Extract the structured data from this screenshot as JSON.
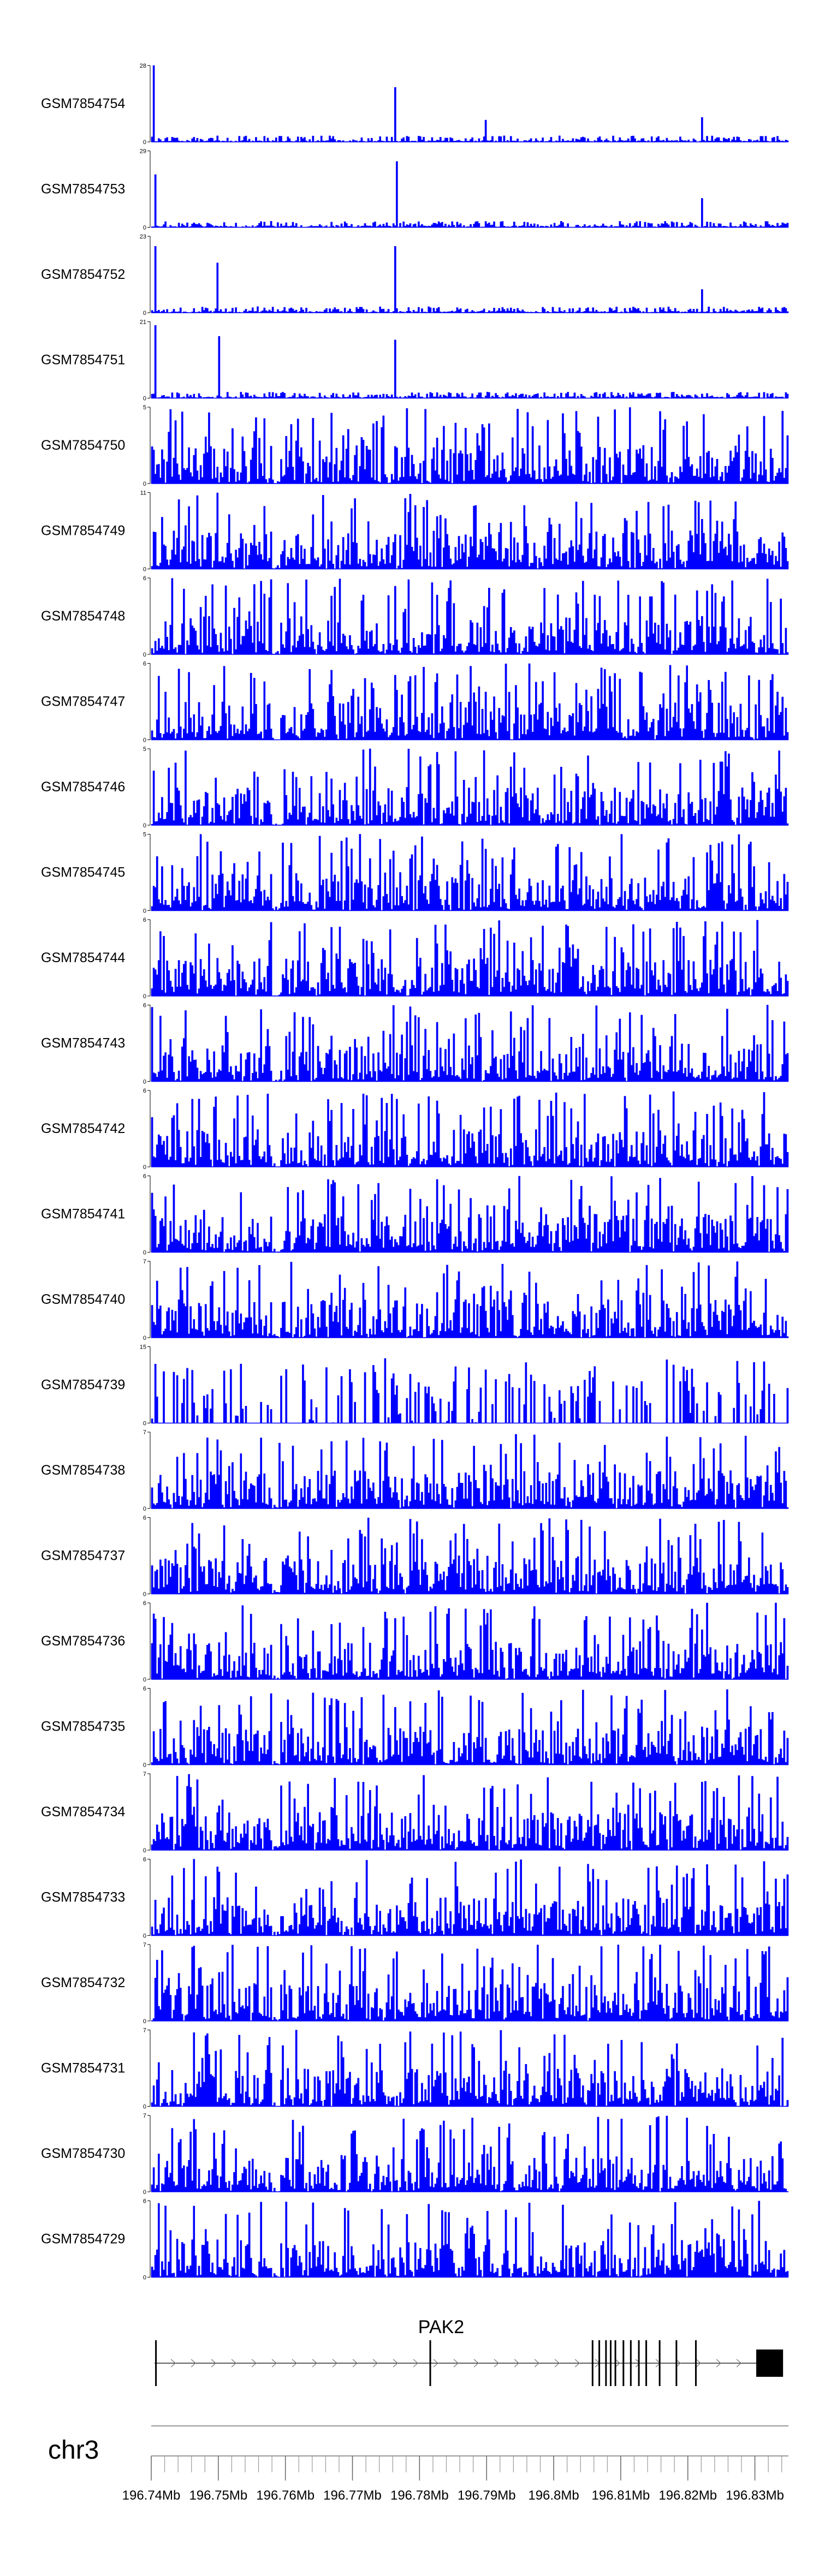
{
  "chart_data": {
    "type": "area",
    "color": "#0000ff",
    "chromosome": "chr3",
    "gene": "PAK2",
    "x_range_mb": [
      196.74,
      196.835
    ],
    "x_ticks": [
      "196.74Mb",
      "196.75Mb",
      "196.76Mb",
      "196.77Mb",
      "196.78Mb",
      "196.79Mb",
      "196.8Mb",
      "196.81Mb",
      "196.82Mb",
      "196.83Mb"
    ],
    "gene_model": {
      "start_mb": 196.7405,
      "end_mb": 196.8342,
      "strand": "+",
      "exons_mb": [
        196.7407,
        196.7816,
        196.8058,
        196.8068,
        196.8078,
        196.8085,
        196.8092,
        196.8104,
        196.8115,
        196.8127,
        196.8138,
        196.8158,
        196.8183,
        196.8212
      ],
      "last_exon_mb": [
        196.8302,
        196.8342
      ]
    },
    "tracks": [
      {
        "name": "GSM7854754",
        "ymax": 28,
        "peaks": [
          {
            "x": 196.7403,
            "v": 28
          },
          {
            "x": 196.7764,
            "v": 20
          },
          {
            "x": 196.7899,
            "v": 8
          },
          {
            "x": 196.8222,
            "v": 9
          }
        ]
      },
      {
        "name": "GSM7854753",
        "ymax": 29,
        "peaks": [
          {
            "x": 196.7404,
            "v": 20
          },
          {
            "x": 196.7765,
            "v": 25
          },
          {
            "x": 196.8221,
            "v": 11
          }
        ]
      },
      {
        "name": "GSM7854752",
        "ymax": 23,
        "peaks": [
          {
            "x": 196.7405,
            "v": 20
          },
          {
            "x": 196.7498,
            "v": 15
          },
          {
            "x": 196.7764,
            "v": 20
          },
          {
            "x": 196.8222,
            "v": 7
          }
        ]
      },
      {
        "name": "GSM7854751",
        "ymax": 21,
        "peaks": [
          {
            "x": 196.7406,
            "v": 20
          },
          {
            "x": 196.7501,
            "v": 17
          },
          {
            "x": 196.7764,
            "v": 16
          }
        ]
      },
      {
        "name": "GSM7854750",
        "ymax": 5,
        "peaks": []
      },
      {
        "name": "GSM7854749",
        "ymax": 11,
        "peaks": [
          {
            "x": 196.7455,
            "v": 9
          }
        ]
      },
      {
        "name": "GSM7854748",
        "ymax": 6,
        "peaks": []
      },
      {
        "name": "GSM7854747",
        "ymax": 6,
        "peaks": [
          {
            "x": 196.741,
            "v": 5
          }
        ]
      },
      {
        "name": "GSM7854746",
        "ymax": 5,
        "peaks": []
      },
      {
        "name": "GSM7854745",
        "ymax": 5,
        "peaks": [
          {
            "x": 196.771,
            "v": 5
          }
        ]
      },
      {
        "name": "GSM7854744",
        "ymax": 6,
        "peaks": []
      },
      {
        "name": "GSM7854743",
        "ymax": 6,
        "peaks": []
      },
      {
        "name": "GSM7854742",
        "ymax": 6,
        "peaks": [
          {
            "x": 196.775,
            "v": 5
          }
        ]
      },
      {
        "name": "GSM7854741",
        "ymax": 6,
        "peaks": [
          {
            "x": 196.7935,
            "v": 5
          }
        ]
      },
      {
        "name": "GSM7854740",
        "ymax": 7,
        "peaks": [
          {
            "x": 196.821,
            "v": 6
          }
        ]
      },
      {
        "name": "GSM7854739",
        "ymax": 15,
        "peaks": []
      },
      {
        "name": "GSM7854738",
        "ymax": 7,
        "peaks": [
          {
            "x": 196.759,
            "v": 6
          }
        ]
      },
      {
        "name": "GSM7854737",
        "ymax": 6,
        "peaks": []
      },
      {
        "name": "GSM7854736",
        "ymax": 6,
        "peaks": [
          {
            "x": 196.8332,
            "v": 6
          }
        ]
      },
      {
        "name": "GSM7854735",
        "ymax": 6,
        "peaks": []
      },
      {
        "name": "GSM7854734",
        "ymax": 7,
        "peaks": []
      },
      {
        "name": "GSM7854733",
        "ymax": 6,
        "peaks": []
      },
      {
        "name": "GSM7854732",
        "ymax": 7,
        "peaks": []
      },
      {
        "name": "GSM7854731",
        "ymax": 7,
        "peaks": []
      },
      {
        "name": "GSM7854730",
        "ymax": 7,
        "peaks": []
      },
      {
        "name": "GSM7854729",
        "ymax": 6,
        "peaks": []
      }
    ]
  }
}
